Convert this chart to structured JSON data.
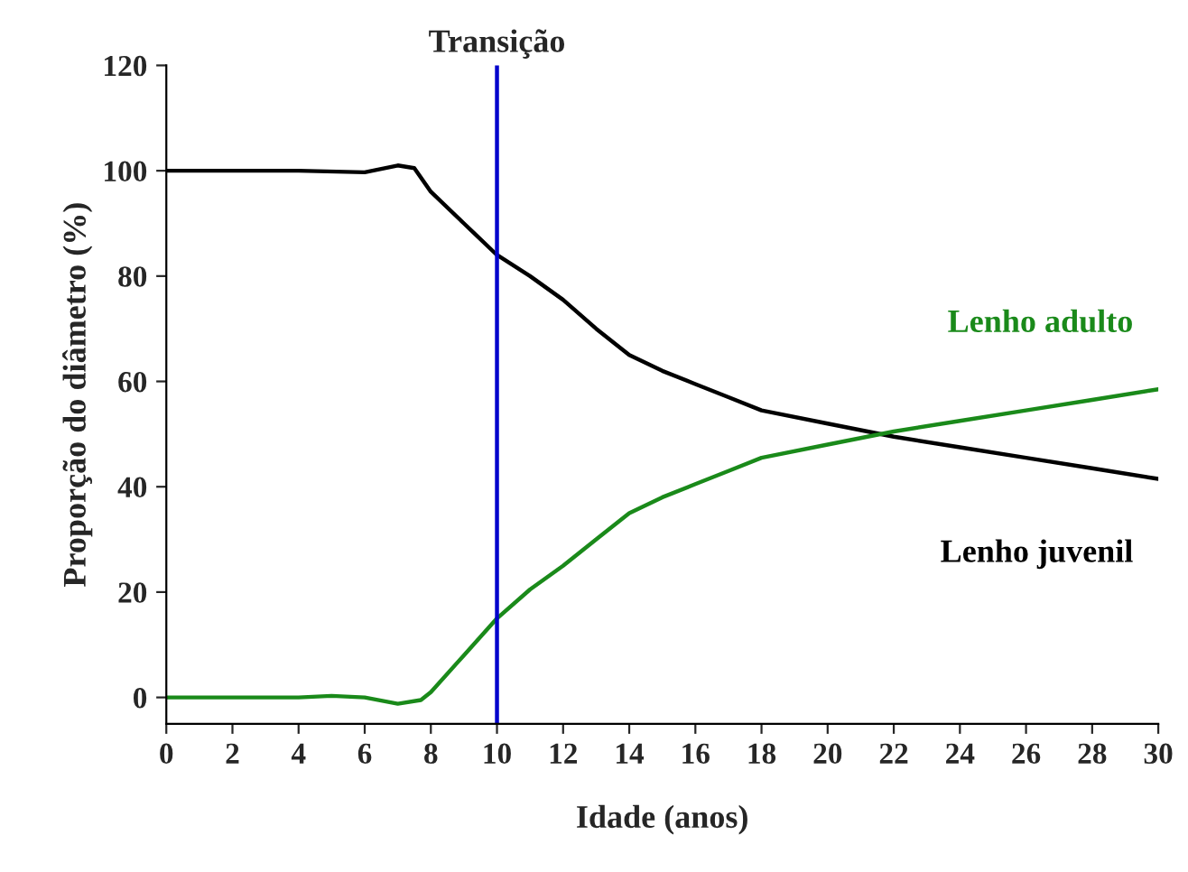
{
  "chart_data": {
    "type": "line",
    "xlabel": "Idade (anos)",
    "ylabel": "Proporção do diâmetro (%)",
    "xlim": [
      0,
      30
    ],
    "xticks": [
      0,
      2,
      4,
      6,
      8,
      10,
      12,
      14,
      16,
      18,
      20,
      22,
      24,
      26,
      28,
      30
    ],
    "ylim": [
      -5,
      120
    ],
    "yticks": [
      0,
      20,
      40,
      60,
      80,
      100,
      120
    ],
    "grid": false,
    "marker": "none",
    "line_style": "solid",
    "ref_lines": [
      {
        "axis": "x",
        "value": 10,
        "label": "Transição",
        "color": "#0000cc",
        "line_style": "solid"
      }
    ],
    "series": [
      {
        "name": "Lenho juvenil",
        "color": "#000000",
        "x": [
          0,
          4,
          6,
          7,
          7.5,
          8,
          9,
          10,
          11,
          12,
          13,
          14,
          15,
          16,
          17,
          18,
          20,
          22,
          24,
          26,
          28,
          30
        ],
        "values": [
          100,
          100,
          99.7,
          101,
          100.5,
          96,
          90,
          84,
          80,
          75.5,
          70,
          65,
          62,
          59.5,
          57,
          54.5,
          52,
          49.5,
          47.5,
          45.5,
          43.5,
          41.5
        ]
      },
      {
        "name": "Lenho adulto",
        "color": "#1a8a1a",
        "x": [
          0,
          4,
          5,
          6,
          7,
          7.7,
          8,
          9,
          10,
          11,
          12,
          13,
          14,
          15,
          16,
          17,
          18,
          20,
          22,
          24,
          26,
          28,
          30
        ],
        "values": [
          0,
          0,
          0.3,
          0,
          -1.2,
          -0.5,
          1,
          8,
          15,
          20.5,
          25,
          30,
          35,
          38,
          40.5,
          43,
          45.5,
          48,
          50.5,
          52.5,
          54.5,
          56.5,
          58.5
        ]
      }
    ]
  }
}
